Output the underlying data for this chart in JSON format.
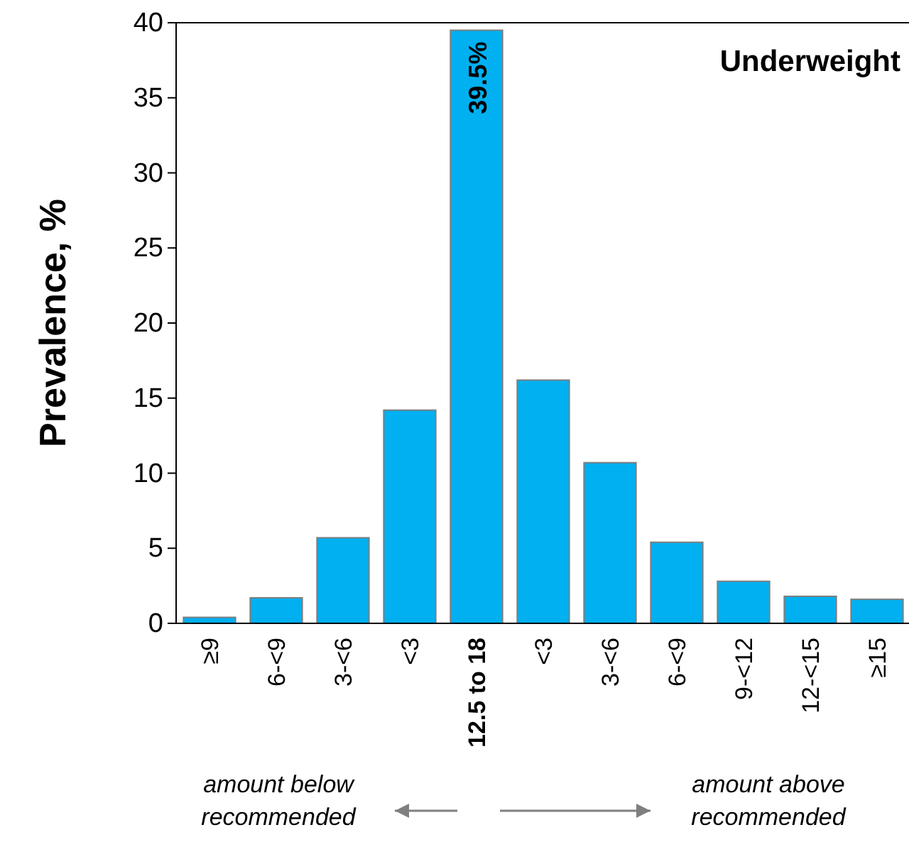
{
  "chart_data": {
    "type": "bar",
    "title": "Underweight",
    "ylabel": "Prevalence, %",
    "categories": [
      "≥9",
      "6-<9",
      "3-<6",
      "<3",
      "12.5 to 18",
      "<3",
      "3-<6",
      "6-<9",
      "9-<12",
      "12-<15",
      "≥15"
    ],
    "values": [
      0.4,
      1.7,
      5.7,
      14.2,
      39.5,
      16.2,
      10.7,
      5.4,
      2.8,
      1.8,
      1.6
    ],
    "value_labels": [
      null,
      null,
      null,
      null,
      "39.5%",
      null,
      null,
      null,
      null,
      null,
      null
    ],
    "color": "#00b0f0",
    "ylim": [
      0,
      40
    ],
    "yticks": [
      0,
      5,
      10,
      15,
      20,
      25,
      30,
      35,
      40
    ],
    "grid": false,
    "annotations": [
      "amount below recommended",
      "amount above recommended"
    ]
  }
}
